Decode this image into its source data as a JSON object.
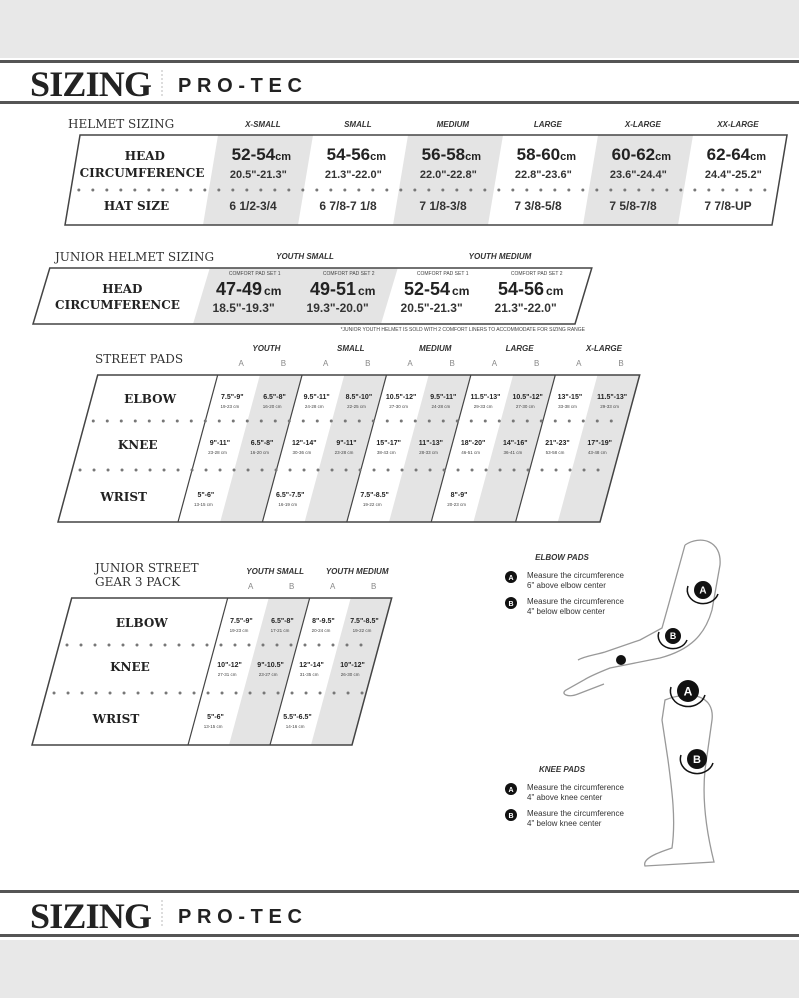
{
  "header": {
    "title": "SIZING",
    "brand": "PRO-TEC"
  },
  "footer": {
    "title": "SIZING",
    "brand": "PRO-TEC"
  },
  "colors": {
    "band": "#e8e8e8",
    "shade": "#e4e4e4",
    "rule": "#444444"
  },
  "helmet": {
    "title": "HELMET SIZING",
    "head_label": "HEAD",
    "circ_label": "CIRCUMFERENCE",
    "hat_label": "HAT SIZE",
    "columns": [
      {
        "size": "X-SMALL",
        "cm": "52-54",
        "unit": "cm",
        "inches": "20.5\"-21.3\"",
        "hat": "6 1/2-3/4"
      },
      {
        "size": "SMALL",
        "cm": "54-56",
        "unit": "cm",
        "inches": "21.3\"-22.0\"",
        "hat": "6 7/8-7 1/8"
      },
      {
        "size": "MEDIUM",
        "cm": "56-58",
        "unit": "cm",
        "inches": "22.0\"-22.8\"",
        "hat": "7 1/8-3/8"
      },
      {
        "size": "LARGE",
        "cm": "58-60",
        "unit": "cm",
        "inches": "22.8\"-23.6\"",
        "hat": "7 3/8-5/8"
      },
      {
        "size": "X-LARGE",
        "cm": "60-62",
        "unit": "cm",
        "inches": "23.6\"-24.4\"",
        "hat": "7 5/8-7/8"
      },
      {
        "size": "XX-LARGE",
        "cm": "62-64",
        "unit": "cm",
        "inches": "24.4\"-25.2\"",
        "hat": "7 7/8-UP"
      }
    ]
  },
  "junior_helmet": {
    "title": "JUNIOR HELMET SIZING",
    "head_label": "HEAD",
    "circ_label": "CIRCUMFERENCE",
    "groups": [
      "YOUTH SMALL",
      "YOUTH MEDIUM"
    ],
    "columns": [
      {
        "pad": "COMFORT PAD SET 1",
        "cm": "47-49",
        "unit": "cm",
        "inches": "18.5\"-19.3\""
      },
      {
        "pad": "COMFORT PAD SET 2",
        "cm": "49-51",
        "unit": "cm",
        "inches": "19.3\"-20.0\""
      },
      {
        "pad": "COMFORT PAD SET 1",
        "cm": "52-54",
        "unit": "cm",
        "inches": "20.5\"-21.3\""
      },
      {
        "pad": "COMFORT PAD SET 2",
        "cm": "54-56",
        "unit": "cm",
        "inches": "21.3\"-22.0\""
      }
    ],
    "footnote": "*JUNIOR YOUTH HELMET IS SOLD WITH 2 COMFORT LINERS TO ACCOMMODATE FOR SIZING RANGE"
  },
  "street_pads": {
    "title": [
      "STREET PADS"
    ],
    "rows": [
      "ELBOW",
      "KNEE",
      "WRIST"
    ],
    "sub": [
      "A",
      "B"
    ],
    "groups": [
      {
        "name": "YOUTH",
        "cells": [
          [
            {
              "in": "7.5\"-9\"",
              "cm": "19-23 cm"
            },
            {
              "in": "6.5\"-8\"",
              "cm": "16-20 cm"
            }
          ],
          [
            {
              "in": "9\"-11\"",
              "cm": "23-28 cm"
            },
            {
              "in": "6.5\"-8\"",
              "cm": "16-20 cm"
            }
          ],
          [
            {
              "in": "5\"-6\"",
              "cm": "13-15 cm"
            },
            null
          ]
        ]
      },
      {
        "name": "SMALL",
        "cells": [
          [
            {
              "in": "9.5\"-11\"",
              "cm": "24-28 cm"
            },
            {
              "in": "8.5\"-10\"",
              "cm": "22-25 cm"
            }
          ],
          [
            {
              "in": "12\"-14\"",
              "cm": "30-36 cm"
            },
            {
              "in": "9\"-11\"",
              "cm": "23-28 cm"
            }
          ],
          [
            {
              "in": "6.5\"-7.5\"",
              "cm": "16-19 cm"
            },
            null
          ]
        ]
      },
      {
        "name": "MEDIUM",
        "cells": [
          [
            {
              "in": "10.5\"-12\"",
              "cm": "27-30 cm"
            },
            {
              "in": "9.5\"-11\"",
              "cm": "24-28 cm"
            }
          ],
          [
            {
              "in": "15\"-17\"",
              "cm": "38-43 cm"
            },
            {
              "in": "11\"-13\"",
              "cm": "28-33 cm"
            }
          ],
          [
            {
              "in": "7.5\"-8.5\"",
              "cm": "19-22 cm"
            },
            null
          ]
        ]
      },
      {
        "name": "LARGE",
        "cells": [
          [
            {
              "in": "11.5\"-13\"",
              "cm": "29-33 cm"
            },
            {
              "in": "10.5\"-12\"",
              "cm": "27-30 cm"
            }
          ],
          [
            {
              "in": "18\"-20\"",
              "cm": "46-51 cm"
            },
            {
              "in": "14\"-16\"",
              "cm": "36-41 cm"
            }
          ],
          [
            {
              "in": "8\"-9\"",
              "cm": "20-23 cm"
            },
            null
          ]
        ]
      },
      {
        "name": "X-LARGE",
        "cells": [
          [
            {
              "in": "13\"-15\"",
              "cm": "33-38 cm"
            },
            {
              "in": "11.5\"-13\"",
              "cm": "29-33 cm"
            }
          ],
          [
            {
              "in": "21\"-23\"",
              "cm": "53-58 cm"
            },
            {
              "in": "17\"-19\"",
              "cm": "43-48 cm"
            }
          ],
          [
            null,
            null
          ]
        ]
      }
    ]
  },
  "junior_street": {
    "title": [
      "JUNIOR STREET",
      "GEAR 3 PACK"
    ],
    "rows": [
      "ELBOW",
      "KNEE",
      "WRIST"
    ],
    "sub": [
      "A",
      "B"
    ],
    "groups": [
      {
        "name": "YOUTH SMALL",
        "cells": [
          [
            {
              "in": "7.5\"-9\"",
              "cm": "19-23 cm"
            },
            {
              "in": "6.5\"-8\"",
              "cm": "17-21 cm"
            }
          ],
          [
            {
              "in": "10\"-12\"",
              "cm": "27-31 cm"
            },
            {
              "in": "9\"-10.5\"",
              "cm": "23-27 cm"
            }
          ],
          [
            {
              "in": "5\"-6\"",
              "cm": "13-15 cm"
            },
            null
          ]
        ]
      },
      {
        "name": "YOUTH MEDIUM",
        "cells": [
          [
            {
              "in": "8\"-9.5\"",
              "cm": "20-24 cm"
            },
            {
              "in": "7.5\"-8.5\"",
              "cm": "19-22 cm"
            }
          ],
          [
            {
              "in": "12\"-14\"",
              "cm": "31-35 cm"
            },
            {
              "in": "10\"-12\"",
              "cm": "26-30 cm"
            }
          ],
          [
            {
              "in": "5.5\"-6.5\"",
              "cm": "14-16 cm"
            },
            null
          ]
        ]
      }
    ]
  },
  "guide": {
    "elbow_title": "ELBOW PADS",
    "elbow_a": [
      "Measure the circumference",
      "6\" above elbow center"
    ],
    "elbow_b": [
      "Measure the circumference",
      "4\" below elbow center"
    ],
    "knee_title": "KNEE PADS",
    "knee_a": [
      "Measure the circumference",
      "4\" above knee center"
    ],
    "knee_b": [
      "Measure the circumference",
      "4\" below knee center"
    ],
    "marker_a": "A",
    "marker_b": "B"
  }
}
